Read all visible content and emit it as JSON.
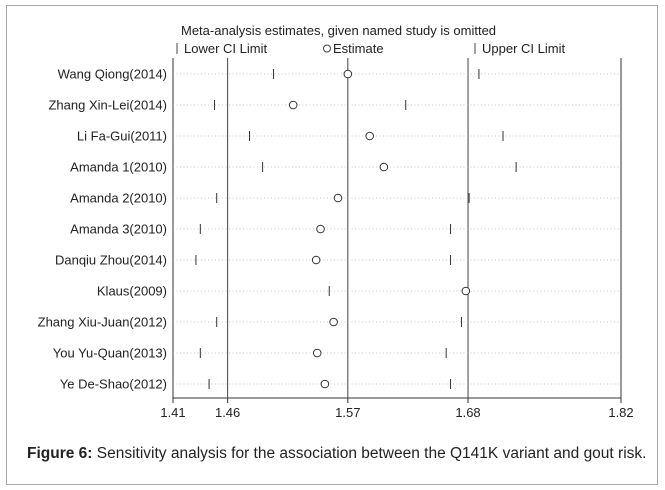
{
  "chart_data": {
    "type": "scatter",
    "title": "Meta-analysis estimates, given named study is omitted",
    "legend": {
      "lower": "Lower CI Limit",
      "estimate": "Estimate",
      "upper": "Upper CI Limit"
    },
    "xticks": [
      "1.41",
      "1.46",
      "1.57",
      "1.68",
      "1.82"
    ],
    "xlim": [
      1.41,
      1.82
    ],
    "reference_lines": [
      1.46,
      1.57,
      1.68
    ],
    "studies": [
      {
        "name": "Wang Qiong(2014)",
        "lower": 1.502,
        "estimate": 1.57,
        "upper": 1.69
      },
      {
        "name": "Zhang Xin-Lei(2014)",
        "lower": 1.448,
        "estimate": 1.52,
        "upper": 1.623
      },
      {
        "name": "Li Fa-Gui(2011)",
        "lower": 1.48,
        "estimate": 1.59,
        "upper": 1.712
      },
      {
        "name": "Amanda 1(2010)",
        "lower": 1.492,
        "estimate": 1.603,
        "upper": 1.724
      },
      {
        "name": "Amanda 2(2010)",
        "lower": 1.45,
        "estimate": 1.561,
        "upper": 1.681
      },
      {
        "name": "Amanda 3(2010)",
        "lower": 1.435,
        "estimate": 1.545,
        "upper": 1.664
      },
      {
        "name": "Danqiu Zhou(2014)",
        "lower": 1.431,
        "estimate": 1.541,
        "upper": 1.664
      },
      {
        "name": "Klaus(2009)",
        "lower": 1.553,
        "estimate": 1.678,
        "upper": 1.82
      },
      {
        "name": "Zhang Xiu-Juan(2012)",
        "lower": 1.45,
        "estimate": 1.557,
        "upper": 1.674
      },
      {
        "name": "You Yu-Quan(2013)",
        "lower": 1.435,
        "estimate": 1.542,
        "upper": 1.66
      },
      {
        "name": "Ye De-Shao(2012)",
        "lower": 1.443,
        "estimate": 1.549,
        "upper": 1.664
      }
    ]
  },
  "caption": {
    "label": "Figure 6:",
    "text": " Sensitivity analysis for the association between the Q141K variant and gout risk."
  }
}
